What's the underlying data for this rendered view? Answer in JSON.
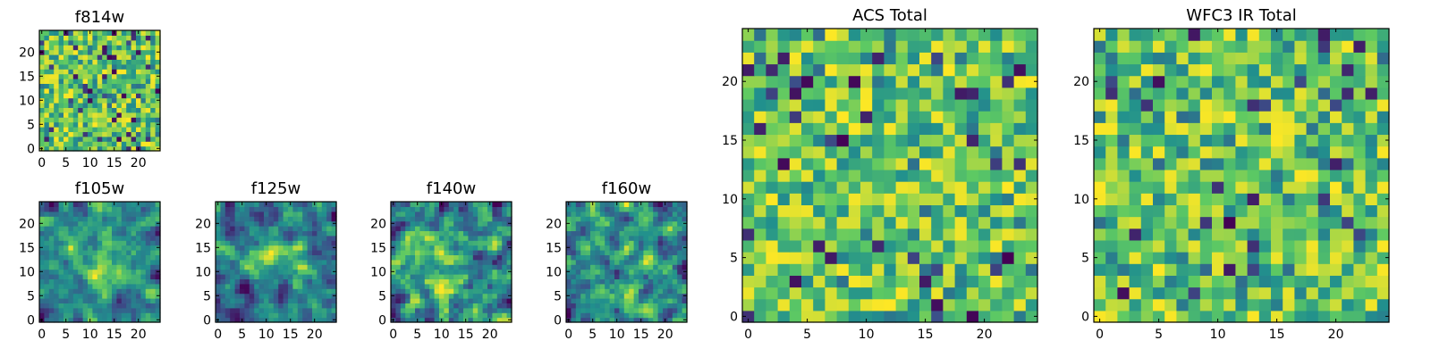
{
  "figure": {
    "background": "#ffffff",
    "colormap": [
      "#440154",
      "#3b528b",
      "#21908d",
      "#5dc963",
      "#fde725"
    ]
  },
  "chart_data": [
    {
      "type": "heatmap",
      "title": "f814w",
      "grid": [
        25,
        25
      ],
      "xlim": [
        -0.5,
        24.5
      ],
      "ylim": [
        -0.5,
        24.5
      ],
      "xticks": [
        0,
        5,
        10,
        15,
        20
      ],
      "yticks": [
        0,
        5,
        10,
        15,
        20
      ],
      "texture": "noise"
    },
    {
      "type": "heatmap",
      "title": "f105w",
      "grid": [
        25,
        25
      ],
      "xlim": [
        -0.5,
        24.5
      ],
      "ylim": [
        -0.5,
        24.5
      ],
      "xticks": [
        0,
        5,
        10,
        15,
        20
      ],
      "yticks": [
        0,
        5,
        10,
        15,
        20
      ],
      "texture": "smooth"
    },
    {
      "type": "heatmap",
      "title": "f125w",
      "grid": [
        25,
        25
      ],
      "xlim": [
        -0.5,
        24.5
      ],
      "ylim": [
        -0.5,
        24.5
      ],
      "xticks": [
        0,
        5,
        10,
        15,
        20
      ],
      "yticks": [
        0,
        5,
        10,
        15,
        20
      ],
      "texture": "smooth"
    },
    {
      "type": "heatmap",
      "title": "f140w",
      "grid": [
        25,
        25
      ],
      "xlim": [
        -0.5,
        24.5
      ],
      "ylim": [
        -0.5,
        24.5
      ],
      "xticks": [
        0,
        5,
        10,
        15,
        20
      ],
      "yticks": [
        0,
        5,
        10,
        15,
        20
      ],
      "texture": "smooth"
    },
    {
      "type": "heatmap",
      "title": "f160w",
      "grid": [
        25,
        25
      ],
      "xlim": [
        -0.5,
        24.5
      ],
      "ylim": [
        -0.5,
        24.5
      ],
      "xticks": [
        0,
        5,
        10,
        15,
        20
      ],
      "yticks": [
        0,
        5,
        10,
        15,
        20
      ],
      "texture": "smooth"
    },
    {
      "type": "heatmap",
      "title": "ACS Total",
      "grid": [
        25,
        25
      ],
      "xlim": [
        -0.5,
        24.5
      ],
      "ylim": [
        -0.5,
        24.5
      ],
      "xticks": [
        0,
        5,
        10,
        15,
        20
      ],
      "yticks": [
        0,
        5,
        10,
        15,
        20
      ],
      "texture": "noise"
    },
    {
      "type": "heatmap",
      "title": "WFC3 IR Total",
      "grid": [
        25,
        25
      ],
      "xlim": [
        -0.5,
        24.5
      ],
      "ylim": [
        -0.5,
        24.5
      ],
      "xticks": [
        0,
        5,
        10,
        15,
        20
      ],
      "yticks": [
        0,
        5,
        10,
        15,
        20
      ],
      "texture": "noise"
    }
  ]
}
